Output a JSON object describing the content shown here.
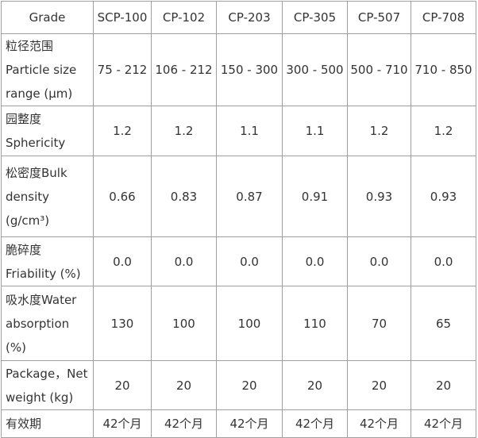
{
  "table": {
    "header": [
      "Grade",
      "SCP-100",
      "CP-102",
      "CP-203",
      "CP-305",
      "CP-507",
      "CP-708"
    ],
    "rows": [
      {
        "label": [
          "粒径范围",
          "Particle size",
          "range (μm)"
        ],
        "cells": [
          "75 - 212",
          "106 - 212",
          "150 - 300",
          "300 - 500",
          "500 - 710",
          "710 - 850"
        ]
      },
      {
        "label": [
          "园整度",
          "Sphericity"
        ],
        "cells": [
          "1.2",
          "1.2",
          "1.1",
          "1.1",
          "1.2",
          "1.2"
        ]
      },
      {
        "label": [
          "松密度Bulk",
          "density",
          "(g/cm³)"
        ],
        "cells": [
          "0.66",
          "0.83",
          "0.87",
          "0.91",
          "0.93",
          "0.93"
        ]
      },
      {
        "label": [
          "脆碎度",
          "Friability (%)"
        ],
        "cells": [
          "0.0",
          "0.0",
          "0.0",
          "0.0",
          "0.0",
          "0.0"
        ]
      },
      {
        "label": [
          "吸水度Water",
          "absorption",
          "(%)"
        ],
        "cells": [
          "130",
          "100",
          "100",
          "110",
          "70",
          "65"
        ]
      },
      {
        "label": [
          "Package，Net",
          "weight (kg)"
        ],
        "cells": [
          "20",
          "20",
          "20",
          "20",
          "20",
          "20"
        ]
      },
      {
        "label": [
          "有效期"
        ],
        "cells": [
          "42个月",
          "42个月",
          "42个月",
          "42个月",
          "42个月",
          "42个月"
        ]
      }
    ]
  }
}
